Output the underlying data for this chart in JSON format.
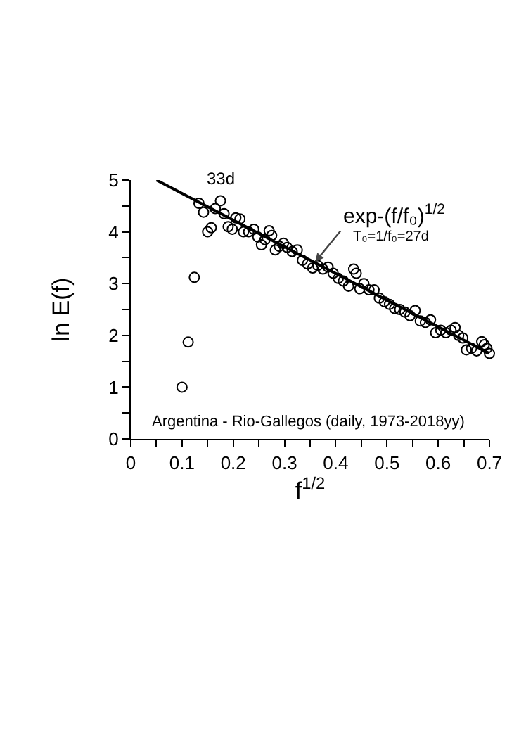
{
  "chart_data": {
    "type": "scatter",
    "xlabel": "f$^{1/2}$",
    "ylabel": "ln E(f)",
    "xlim": [
      0,
      0.7
    ],
    "ylim": [
      0,
      5
    ],
    "xticks": [
      0,
      {
        "value": 0.05,
        "label": null
      },
      0.1,
      {
        "value": 0.15,
        "label": null
      },
      0.2,
      {
        "value": 0.25,
        "label": null
      },
      0.3,
      {
        "value": 0.35,
        "label": null
      },
      0.4,
      {
        "value": 0.45,
        "label": null
      },
      0.5,
      {
        "value": 0.55,
        "label": null
      },
      0.6,
      {
        "value": 0.65,
        "label": null
      },
      0.7
    ],
    "yticks": [
      0,
      {
        "value": 0.5,
        "label": null
      },
      1,
      {
        "value": 1.5,
        "label": null
      },
      2,
      {
        "value": 2.5,
        "label": null
      },
      3,
      {
        "value": 3.5,
        "label": null
      },
      4,
      {
        "value": 4.5,
        "label": null
      },
      5
    ],
    "grid": false,
    "marker": "circle",
    "series": [
      {
        "color": "#000000",
        "x": [
          0.1,
          0.112,
          0.124,
          0.133,
          0.142,
          0.15,
          0.157,
          0.165,
          0.175,
          0.182,
          0.19,
          0.198,
          0.205,
          0.213,
          0.22,
          0.23,
          0.24,
          0.248,
          0.255,
          0.262,
          0.27,
          0.275,
          0.282,
          0.29,
          0.298,
          0.305,
          0.315,
          0.325,
          0.335,
          0.345,
          0.355,
          0.365,
          0.375,
          0.385,
          0.395,
          0.405,
          0.415,
          0.425,
          0.435,
          0.44,
          0.447,
          0.455,
          0.465,
          0.475,
          0.485,
          0.495,
          0.505,
          0.515,
          0.525,
          0.535,
          0.545,
          0.555,
          0.565,
          0.575,
          0.585,
          0.595,
          0.605,
          0.615,
          0.625,
          0.633,
          0.64,
          0.648,
          0.655,
          0.665,
          0.675,
          0.685,
          0.69,
          0.695,
          0.7
        ],
        "values": [
          1.0,
          1.87,
          3.12,
          4.55,
          4.38,
          4.0,
          4.08,
          4.45,
          4.6,
          4.35,
          4.1,
          4.05,
          4.27,
          4.25,
          4.0,
          4.0,
          4.05,
          3.9,
          3.75,
          3.85,
          4.02,
          3.93,
          3.65,
          3.72,
          3.78,
          3.7,
          3.62,
          3.65,
          3.45,
          3.38,
          3.3,
          3.35,
          3.28,
          3.32,
          3.2,
          3.1,
          3.05,
          2.95,
          3.28,
          3.2,
          2.9,
          3.0,
          2.88,
          2.88,
          2.72,
          2.65,
          2.6,
          2.52,
          2.5,
          2.45,
          2.38,
          2.48,
          2.28,
          2.25,
          2.3,
          2.05,
          2.1,
          2.05,
          2.1,
          2.15,
          2.0,
          1.95,
          1.72,
          1.75,
          1.7,
          1.88,
          1.82,
          1.75,
          1.65
        ]
      },
      {
        "type": "line",
        "color": "#000000",
        "marker": "none",
        "line_style": "solid",
        "x": [
          0.05,
          0.7
        ],
        "values": [
          5.0,
          1.65
        ]
      }
    ],
    "annotations": [
      {
        "text": "33d",
        "x": 0.175,
        "y": 4.6
      },
      {
        "text": "exp-(f/f₀)$^{1/2}$",
        "x": 0.36,
        "y": 3.42
      },
      "T₀=1/f₀=27d",
      "Argentina - Rio-Gallegos (daily, 1973-2018yy)"
    ]
  }
}
